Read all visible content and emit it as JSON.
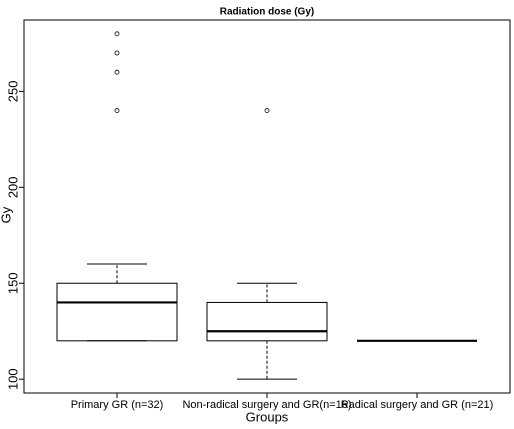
{
  "chart_data": {
    "type": "box",
    "title": "Radiation dose (Gy)",
    "x_label": "Groups",
    "y_label": "Gy",
    "categories": [
      "Primary GR (n=32)",
      "Non-radical surgery and GR(n=16)",
      "Radical surgery and GR (n=21)"
    ],
    "boxes": [
      {
        "whisker_low": 120,
        "q1": 120,
        "median": 140,
        "q3": 150,
        "whisker_high": 160,
        "outliers": [
          240,
          260,
          270,
          280
        ]
      },
      {
        "whisker_low": 100,
        "q1": 120,
        "median": 125,
        "q3": 140,
        "whisker_high": 150,
        "outliers": [
          240
        ]
      },
      {
        "whisker_low": 120,
        "q1": 120,
        "median": 120,
        "q3": 120,
        "whisker_high": 120,
        "outliers": []
      }
    ],
    "ylim": [
      92.8,
      287.2
    ],
    "yticks": [
      100,
      150,
      200,
      250
    ],
    "color": "#000000"
  }
}
